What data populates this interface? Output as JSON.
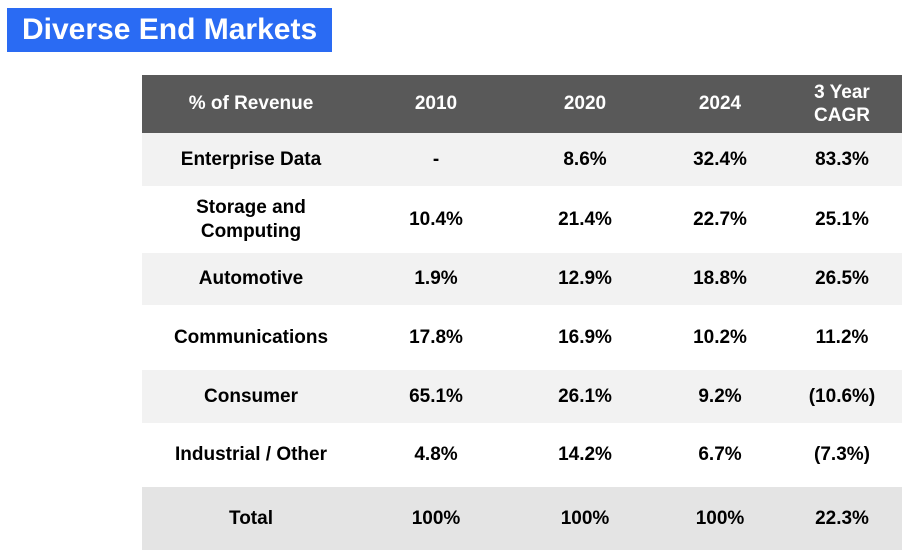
{
  "title": "Diverse End Markets",
  "colors": {
    "title_bg": "#2a6bf3",
    "title_text": "#ffffff",
    "header_bg": "#595959",
    "header_text": "#ffffff",
    "row_bg": "#ffffff",
    "row_alt_bg": "#f2f2f2",
    "total_bg": "#e4e4e4",
    "body_text": "#000000"
  },
  "chart_data": {
    "type": "table",
    "title": "Diverse End Markets",
    "columns": [
      "% of Revenue",
      "2010",
      "2020",
      "2024",
      "3 Year CAGR"
    ],
    "rows": [
      {
        "label": "Enterprise Data",
        "values": [
          "-",
          "8.6%",
          "32.4%",
          "83.3%"
        ]
      },
      {
        "label": "Storage and Computing",
        "values": [
          "10.4%",
          "21.4%",
          "22.7%",
          "25.1%"
        ]
      },
      {
        "label": "Automotive",
        "values": [
          "1.9%",
          "12.9%",
          "18.8%",
          "26.5%"
        ]
      },
      {
        "label": "Communications",
        "values": [
          "17.8%",
          "16.9%",
          "10.2%",
          "11.2%"
        ]
      },
      {
        "label": "Consumer",
        "values": [
          "65.1%",
          "26.1%",
          "9.2%",
          "(10.6%)"
        ]
      },
      {
        "label": "Industrial / Other",
        "values": [
          "4.8%",
          "14.2%",
          "6.7%",
          "(7.3%)"
        ]
      },
      {
        "label": "Total",
        "values": [
          "100%",
          "100%",
          "100%",
          "22.3%"
        ]
      }
    ],
    "notes": "Negative CAGR values shown in parentheses; Total row shaded darker; alternating row stripes"
  }
}
